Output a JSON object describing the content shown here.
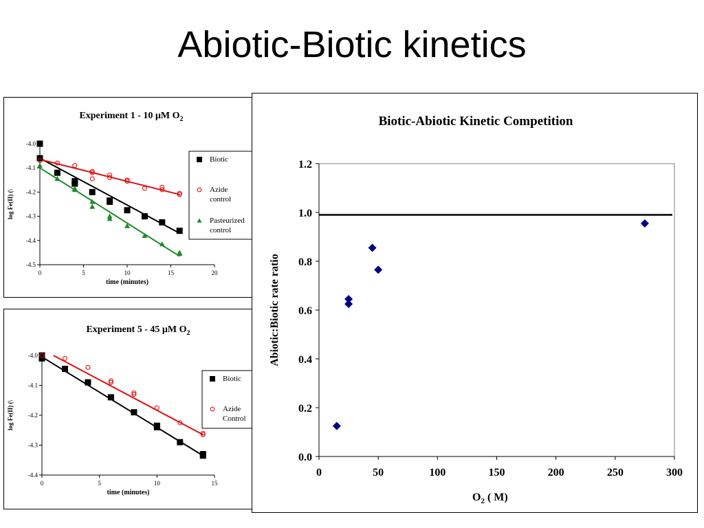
{
  "slide": {
    "title": "Abiotic-Biotic kinetics"
  },
  "chart_data": [
    {
      "id": "exp1",
      "type": "scatter",
      "title": "Experiment 1 - 10 µM O",
      "title_sub": "2",
      "xlabel": "time (minutes)",
      "ylabel": "log Fe(II) (\\",
      "xlim": [
        0,
        20
      ],
      "ylim": [
        -4.5,
        -4.0
      ],
      "xticks": [
        0,
        5,
        10,
        15,
        20
      ],
      "yticks": [
        -4.0,
        -4.1,
        -4.2,
        -4.3,
        -4.4,
        -4.5
      ],
      "xtick_labels": [
        "0",
        "5",
        "10",
        "15",
        "20"
      ],
      "ytick_labels": [
        "-4.0",
        "-4.1",
        "-4.2",
        "-4.3",
        "-4.4",
        "-4.5"
      ],
      "legend_position": "right",
      "series": [
        {
          "name": "Biotic",
          "marker": "square",
          "color": "#000000",
          "x": [
            0,
            0,
            2,
            4,
            4,
            6,
            8,
            8,
            10,
            12,
            14,
            16
          ],
          "y": [
            -4.0,
            -4.06,
            -4.12,
            -4.155,
            -4.165,
            -4.2,
            -4.235,
            -4.24,
            -4.275,
            -4.3,
            -4.325,
            -4.36
          ],
          "fit": [
            [
              0,
              -4.06
            ],
            [
              16,
              -4.37
            ]
          ]
        },
        {
          "name": "Azide control",
          "marker": "circle-open",
          "color": "#e01010",
          "x": [
            0,
            2,
            4,
            6,
            6,
            6,
            8,
            8,
            10,
            10,
            12,
            14,
            14,
            16,
            16
          ],
          "y": [
            -4.07,
            -4.08,
            -4.09,
            -4.115,
            -4.12,
            -4.145,
            -4.13,
            -4.14,
            -4.15,
            -4.155,
            -4.185,
            -4.18,
            -4.19,
            -4.205,
            -4.21
          ],
          "fit": [
            [
              0,
              -4.065
            ],
            [
              16,
              -4.21
            ]
          ]
        },
        {
          "name": "Pasteurized control",
          "marker": "triangle",
          "color": "#1f8a2a",
          "x": [
            0,
            2,
            4,
            4,
            6,
            6,
            8,
            8,
            10,
            12,
            14,
            16,
            16
          ],
          "y": [
            -4.09,
            -4.145,
            -4.185,
            -4.19,
            -4.24,
            -4.26,
            -4.3,
            -4.31,
            -4.34,
            -4.38,
            -4.415,
            -4.45,
            -4.455
          ],
          "fit": [
            [
              0,
              -4.1
            ],
            [
              16,
              -4.465
            ]
          ]
        }
      ]
    },
    {
      "id": "exp5",
      "type": "scatter",
      "title": "Experiment 5 - 45 µM O",
      "title_sub": "2",
      "xlabel": "time (minutes)",
      "ylabel": "log Fe(II) (\\",
      "xlim": [
        0,
        15
      ],
      "ylim": [
        -4.4,
        -4.0
      ],
      "xticks": [
        0,
        5,
        10,
        15
      ],
      "yticks": [
        -4.0,
        -4.1,
        -4.2,
        -4.3,
        -4.4
      ],
      "xtick_labels": [
        "0",
        "5",
        "10",
        "15"
      ],
      "ytick_labels": [
        "-4.0",
        "-4.1",
        "-4.2",
        "-4.3",
        "-4.4"
      ],
      "legend_position": "right",
      "series": [
        {
          "name": "Biotic",
          "marker": "square",
          "color": "#000000",
          "x": [
            0,
            0,
            2,
            4,
            6,
            8,
            10,
            10,
            12,
            14,
            14
          ],
          "y": [
            -4.0,
            -4.01,
            -4.045,
            -4.09,
            -4.14,
            -4.19,
            -4.235,
            -4.24,
            -4.29,
            -4.33,
            -4.335
          ],
          "fit": [
            [
              0,
              -4.005
            ],
            [
              14,
              -4.335
            ]
          ]
        },
        {
          "name": "Azide Control",
          "marker": "circle-open",
          "color": "#e01010",
          "x": [
            0,
            2,
            4,
            6,
            6,
            8,
            8,
            10,
            12,
            14,
            14
          ],
          "y": [
            -4.0,
            -4.01,
            -4.04,
            -4.085,
            -4.09,
            -4.125,
            -4.13,
            -4.175,
            -4.225,
            -4.26,
            -4.265
          ],
          "fit": [
            [
              1,
              -4.0
            ],
            [
              14,
              -4.265
            ]
          ]
        }
      ]
    },
    {
      "id": "main",
      "type": "scatter",
      "title": "Biotic-Abiotic Kinetic Competition",
      "xlabel": "O",
      "xlabel_sub": "2",
      "xlabel_unit": " (   M)",
      "ylabel": "Abiotic:Biotic rate ratio",
      "xlim": [
        0,
        300
      ],
      "ylim": [
        0,
        1.2
      ],
      "xticks": [
        0,
        50,
        100,
        150,
        200,
        250,
        300
      ],
      "yticks": [
        0,
        0.2,
        0.4,
        0.6,
        0.8,
        1.0,
        1.2
      ],
      "xtick_labels": [
        "0",
        "50",
        "100",
        "150",
        "200",
        "250",
        "300"
      ],
      "ytick_labels": [
        "0.0",
        "0.2",
        "0.4",
        "0.6",
        "0.8",
        "1.0",
        "1.2"
      ],
      "reference_line_y": 0.99,
      "series": [
        {
          "marker": "diamond",
          "color": "#00007f",
          "x": [
            15,
            25,
            25,
            45,
            50,
            275
          ],
          "y": [
            0.125,
            0.645,
            0.625,
            0.855,
            0.765,
            0.955
          ]
        }
      ]
    }
  ]
}
